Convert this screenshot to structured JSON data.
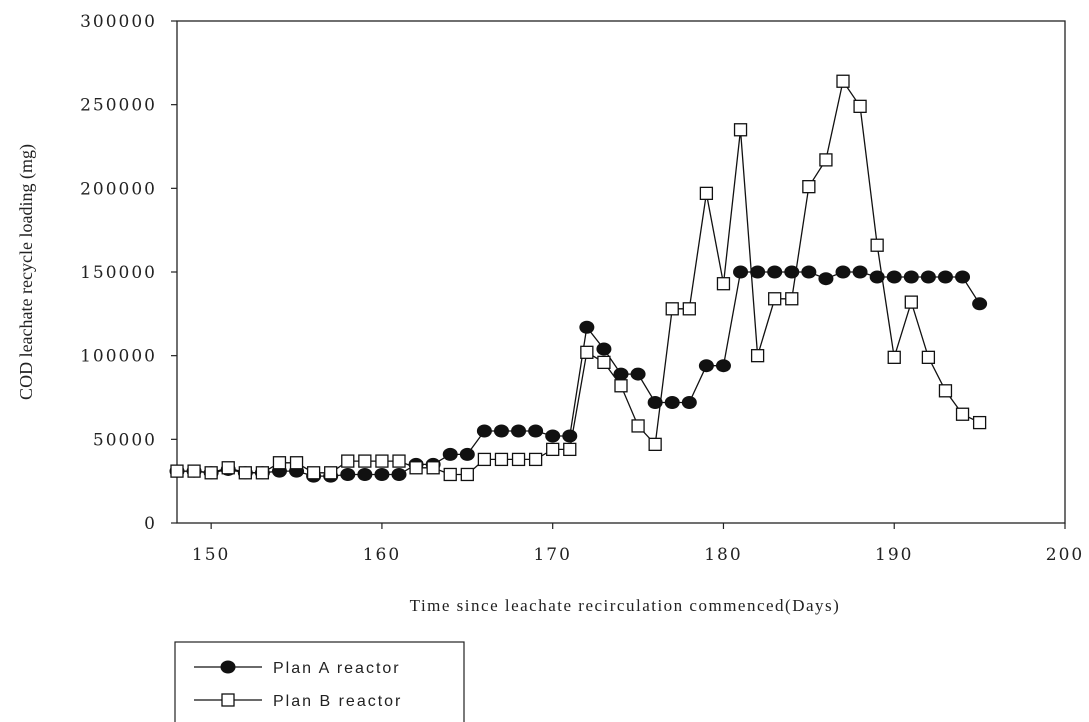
{
  "chart_data": {
    "type": "line",
    "xlabel": "Time since leachate recirculation commenced(Days)",
    "ylabel": "COD leachate recycle loading (mg)",
    "xlim": [
      148,
      200
    ],
    "ylim": [
      0,
      300000
    ],
    "x_ticks": [
      "150",
      "160",
      "170",
      "180",
      "190",
      "200"
    ],
    "y_ticks": [
      "0",
      "50000",
      "100000",
      "150000",
      "200000",
      "250000",
      "300000"
    ],
    "grid": false,
    "legend_position": "bottom-left",
    "series": [
      {
        "name": "Plan A reactor",
        "marker": "filled-circle",
        "x": [
          148,
          149,
          150,
          151,
          152,
          153,
          154,
          155,
          156,
          157,
          158,
          159,
          160,
          161,
          162,
          163,
          164,
          165,
          166,
          167,
          168,
          169,
          170,
          171,
          172,
          173,
          174,
          175,
          176,
          177,
          178,
          179,
          180,
          181,
          182,
          183,
          184,
          185,
          186,
          187,
          188,
          189,
          190,
          191,
          192,
          193,
          194,
          195
        ],
        "y": [
          31000,
          31000,
          30000,
          32000,
          30000,
          30000,
          31000,
          31000,
          28000,
          28000,
          29000,
          29000,
          29000,
          29000,
          35000,
          35000,
          41000,
          41000,
          55000,
          55000,
          55000,
          55000,
          52000,
          52000,
          117000,
          104000,
          89000,
          89000,
          72000,
          72000,
          72000,
          94000,
          94000,
          150000,
          150000,
          150000,
          150000,
          150000,
          146000,
          150000,
          150000,
          147000,
          147000,
          147000,
          147000,
          147000,
          147000,
          131000
        ]
      },
      {
        "name": "Plan B reactor",
        "marker": "open-square",
        "x": [
          148,
          149,
          150,
          151,
          152,
          153,
          154,
          155,
          156,
          157,
          158,
          159,
          160,
          161,
          162,
          163,
          164,
          165,
          166,
          167,
          168,
          169,
          170,
          171,
          172,
          173,
          174,
          175,
          176,
          177,
          178,
          179,
          180,
          181,
          182,
          183,
          184,
          185,
          186,
          187,
          188,
          189,
          190,
          191,
          192,
          193,
          194,
          195
        ],
        "y": [
          31000,
          31000,
          30000,
          33000,
          30000,
          30000,
          36000,
          36000,
          30000,
          30000,
          37000,
          37000,
          37000,
          37000,
          33000,
          33000,
          29000,
          29000,
          38000,
          38000,
          38000,
          38000,
          44000,
          44000,
          102000,
          96000,
          82000,
          58000,
          47000,
          128000,
          128000,
          197000,
          143000,
          235000,
          100000,
          134000,
          134000,
          201000,
          217000,
          264000,
          249000,
          166000,
          99000,
          132000,
          99000,
          79000,
          65000,
          60000
        ]
      }
    ]
  }
}
